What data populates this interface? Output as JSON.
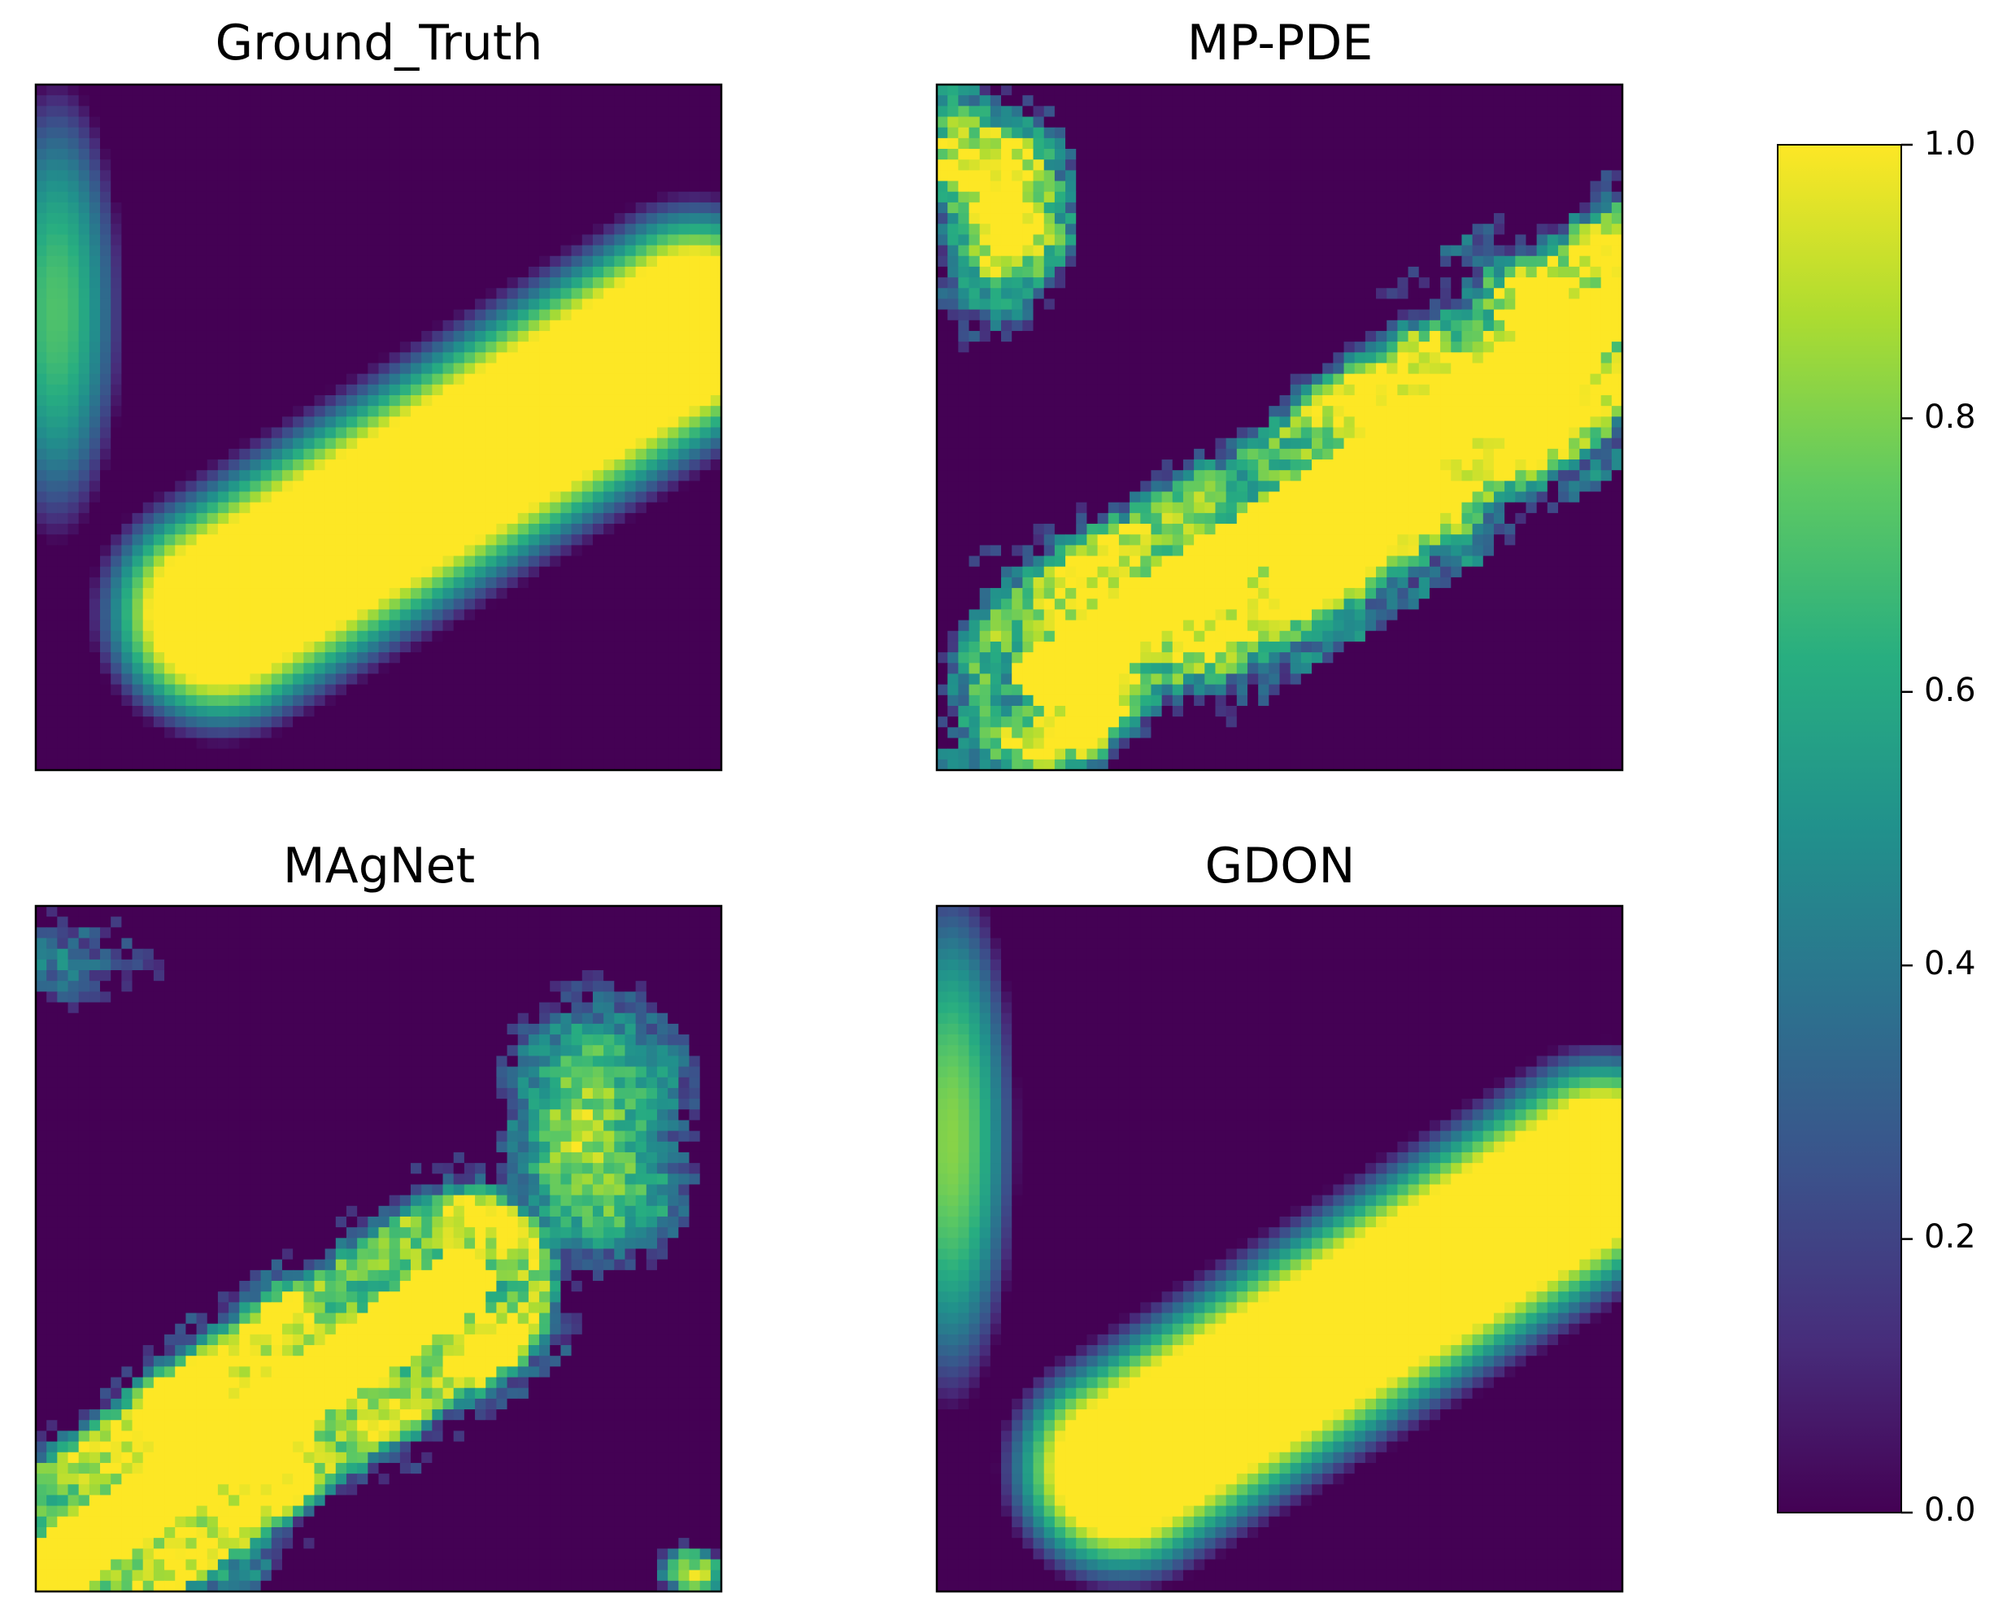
{
  "chart_data": [
    {
      "type": "heatmap",
      "title": "Ground_Truth",
      "grid": false,
      "colormap": "viridis",
      "value_range": [
        0,
        1
      ],
      "description_level": "diagonal yellow band from lower-left to upper-right with smooth green/teal edges; teal plume at upper-left edge",
      "structure": {
        "band": {
          "start": [
            0.27,
            0.77
          ],
          "end": [
            0.96,
            0.35
          ],
          "half_width": 0.105,
          "edge": 0.09
        },
        "blobs": [
          {
            "x": 0.03,
            "y": 0.33,
            "rx": 0.1,
            "ry": 0.34,
            "peak": 0.72
          }
        ],
        "noise": 0.0
      }
    },
    {
      "type": "heatmap",
      "title": "MP-PDE",
      "grid": false,
      "colormap": "viridis",
      "value_range": [
        0,
        1
      ],
      "description_level": "noisy diagonal yellow band with ragged edges; speckled yellow-green patch at top-left",
      "structure": {
        "band": {
          "start": [
            0.16,
            0.86
          ],
          "end": [
            0.98,
            0.33
          ],
          "half_width": 0.11,
          "edge": 0.06
        },
        "blobs": [
          {
            "x": 0.07,
            "y": 0.18,
            "rx": 0.14,
            "ry": 0.22,
            "peak": 0.9
          }
        ],
        "noise": 0.32
      }
    },
    {
      "type": "heatmap",
      "title": "MAgNet",
      "grid": false,
      "colormap": "viridis",
      "value_range": [
        0,
        1
      ],
      "description_level": "yellow band in lower-left half, turbulent green/teal region toward upper-right",
      "structure": {
        "band": {
          "start": [
            0.02,
            0.97
          ],
          "end": [
            0.62,
            0.55
          ],
          "half_width": 0.12,
          "edge": 0.04
        },
        "blobs": [
          {
            "x": 0.82,
            "y": 0.32,
            "rx": 0.16,
            "ry": 0.26,
            "peak": 0.65
          },
          {
            "x": 0.06,
            "y": 0.07,
            "rx": 0.14,
            "ry": 0.1,
            "peak": 0.6
          },
          {
            "x": 0.25,
            "y": 0.96,
            "rx": 0.1,
            "ry": 0.06,
            "peak": 0.45
          },
          {
            "x": 0.95,
            "y": 0.97,
            "rx": 0.06,
            "ry": 0.05,
            "peak": 0.8
          }
        ],
        "noise": 0.25
      }
    },
    {
      "type": "heatmap",
      "title": "GDON",
      "grid": false,
      "colormap": "viridis",
      "value_range": [
        0,
        1
      ],
      "description_level": "smooth diagonal yellow band like Ground_Truth; teal plume on left edge",
      "structure": {
        "band": {
          "start": [
            0.27,
            0.82
          ],
          "end": [
            0.97,
            0.38
          ],
          "half_width": 0.1,
          "edge": 0.085
        },
        "blobs": [
          {
            "x": 0.02,
            "y": 0.34,
            "rx": 0.1,
            "ry": 0.4,
            "peak": 0.82
          }
        ],
        "noise": 0.0
      }
    }
  ],
  "colorbar": {
    "colormap": "viridis",
    "range": [
      0,
      1
    ],
    "ticks": [
      "0.0",
      "0.2",
      "0.4",
      "0.6",
      "0.8",
      "1.0"
    ]
  }
}
